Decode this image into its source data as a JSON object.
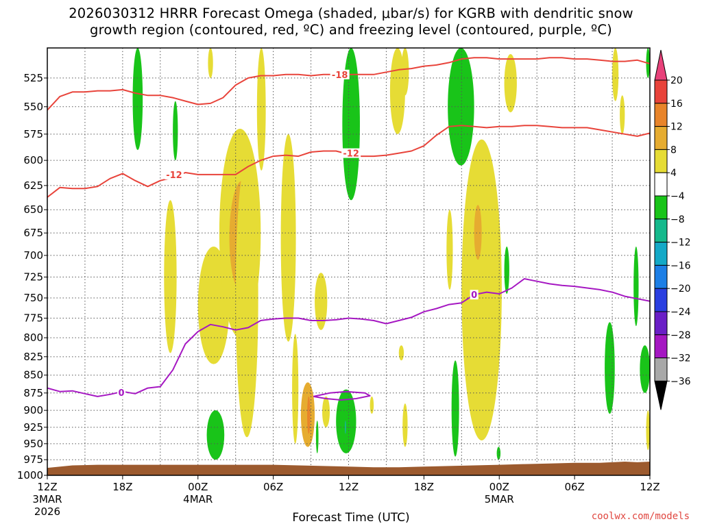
{
  "title": {
    "line1": "2026030312 HRRR Forecast Omega (shaded, μbar/s) for KGRB with dendritic snow",
    "line2": "growth region (contoured, red, ºC) and freezing level (contoured, purple, ºC)"
  },
  "credit": "coolwx.com/models",
  "chart_data": {
    "type": "heatmap",
    "xlabel": "Forecast Time (UTC)",
    "x_ticks": [
      {
        "hour": 0,
        "label": "12Z",
        "sub1": "3MAR",
        "sub2": "2026"
      },
      {
        "hour": 6,
        "label": "18Z",
        "sub1": "",
        "sub2": ""
      },
      {
        "hour": 12,
        "label": "00Z",
        "sub1": "4MAR",
        "sub2": ""
      },
      {
        "hour": 18,
        "label": "06Z",
        "sub1": "",
        "sub2": ""
      },
      {
        "hour": 24,
        "label": "12Z",
        "sub1": "",
        "sub2": ""
      },
      {
        "hour": 30,
        "label": "18Z",
        "sub1": "",
        "sub2": ""
      },
      {
        "hour": 36,
        "label": "00Z",
        "sub1": "5MAR",
        "sub2": ""
      },
      {
        "hour": 42,
        "label": "06Z",
        "sub1": "",
        "sub2": ""
      },
      {
        "hour": 48,
        "label": "12Z",
        "sub1": "",
        "sub2": ""
      }
    ],
    "xlim_hours": [
      0,
      48
    ],
    "y_ticks": [
      525,
      550,
      575,
      600,
      625,
      650,
      675,
      700,
      725,
      750,
      775,
      800,
      825,
      850,
      875,
      900,
      925,
      950,
      975,
      1000
    ],
    "ylim_hpa": [
      500,
      1000
    ],
    "y_scale": "log",
    "grid": true,
    "colorbar": {
      "labels": [
        "20",
        "16",
        "12",
        "8",
        "4",
        "−4",
        "−8",
        "−12",
        "−16",
        "−20",
        "−24",
        "−28",
        "−32",
        "−36"
      ],
      "colors": [
        "#e8417a",
        "#e8433a",
        "#e8842a",
        "#e6ac30",
        "#e6dc35",
        "#ffffff",
        "#19c419",
        "#15b98c",
        "#14a9c7",
        "#1d7fe6",
        "#2a3fe0",
        "#6a1fc6",
        "#a517c2",
        "#a8a8a8",
        "#000000"
      ],
      "placement": "right"
    },
    "omega_cells": [
      {
        "x": [
          6.8,
          7.6
        ],
        "y": [
          500,
          590
        ],
        "value": -6
      },
      {
        "x": [
          10.0,
          10.4
        ],
        "y": [
          545,
          600
        ],
        "value": -6
      },
      {
        "x": [
          12.8,
          13.2
        ],
        "y": [
          500,
          525
        ],
        "value": 6
      },
      {
        "x": [
          9.3,
          10.3
        ],
        "y": [
          640,
          820
        ],
        "value": 6
      },
      {
        "x": [
          12.0,
          14.5
        ],
        "y": [
          690,
          835
        ],
        "value": 6
      },
      {
        "x": [
          13.7,
          17.0
        ],
        "y": [
          570,
          800
        ],
        "value": 6
      },
      {
        "x": [
          14.5,
          16.6
        ],
        "y": [
          620,
          745
        ],
        "value": 9
      },
      {
        "x": [
          15.0,
          16.8
        ],
        "y": [
          600,
          940
        ],
        "value": 6
      },
      {
        "x": [
          12.7,
          14.1
        ],
        "y": [
          900,
          975
        ],
        "value": -6
      },
      {
        "x": [
          16.7,
          17.4
        ],
        "y": [
          500,
          610
        ],
        "value": 6
      },
      {
        "x": [
          18.6,
          19.8
        ],
        "y": [
          575,
          805
        ],
        "value": 6
      },
      {
        "x": [
          19.5,
          20.0
        ],
        "y": [
          795,
          950
        ],
        "value": 6
      },
      {
        "x": [
          20.2,
          21.3
        ],
        "y": [
          860,
          955
        ],
        "value": 9
      },
      {
        "x": [
          20.7,
          20.95
        ],
        "y": [
          880,
          935
        ],
        "value": 14
      },
      {
        "x": [
          21.3,
          22.3
        ],
        "y": [
          720,
          790
        ],
        "value": 6
      },
      {
        "x": [
          21.4,
          21.6
        ],
        "y": [
          915,
          965
        ],
        "value": -6
      },
      {
        "x": [
          21.9,
          22.5
        ],
        "y": [
          880,
          925
        ],
        "value": 6
      },
      {
        "x": [
          23.0,
          24.6
        ],
        "y": [
          870,
          965
        ],
        "value": -6
      },
      {
        "x": [
          23.7,
          23.8
        ],
        "y": [
          915,
          935
        ],
        "value": -10
      },
      {
        "x": [
          23.5,
          24.9
        ],
        "y": [
          500,
          640
        ],
        "value": -6
      },
      {
        "x": [
          25.7,
          26.0
        ],
        "y": [
          880,
          905
        ],
        "value": 6
      },
      {
        "x": [
          27.3,
          28.5
        ],
        "y": [
          500,
          575
        ],
        "value": 6
      },
      {
        "x": [
          28.2,
          28.8
        ],
        "y": [
          500,
          540
        ],
        "value": 6
      },
      {
        "x": [
          28.0,
          28.4
        ],
        "y": [
          810,
          830
        ],
        "value": 6
      },
      {
        "x": [
          28.3,
          28.7
        ],
        "y": [
          890,
          955
        ],
        "value": 6
      },
      {
        "x": [
          31.8,
          32.3
        ],
        "y": [
          650,
          740
        ],
        "value": 6
      },
      {
        "x": [
          32.2,
          32.8
        ],
        "y": [
          830,
          970
        ],
        "value": -6
      },
      {
        "x": [
          31.9,
          34.0
        ],
        "y": [
          500,
          605
        ],
        "value": -6
      },
      {
        "x": [
          33.0,
          36.2
        ],
        "y": [
          580,
          945
        ],
        "value": 6
      },
      {
        "x": [
          34.0,
          34.6
        ],
        "y": [
          645,
          705
        ],
        "value": 9
      },
      {
        "x": [
          35.8,
          36.1
        ],
        "y": [
          955,
          975
        ],
        "value": -6
      },
      {
        "x": [
          36.4,
          36.8
        ],
        "y": [
          690,
          745
        ],
        "value": -6
      },
      {
        "x": [
          36.4,
          37.4
        ],
        "y": [
          505,
          555
        ],
        "value": 6
      },
      {
        "x": [
          45.0,
          45.5
        ],
        "y": [
          500,
          545
        ],
        "value": 6
      },
      {
        "x": [
          45.6,
          46.0
        ],
        "y": [
          540,
          575
        ],
        "value": 6
      },
      {
        "x": [
          44.4,
          45.2
        ],
        "y": [
          780,
          905
        ],
        "value": -6
      },
      {
        "x": [
          46.7,
          47.1
        ],
        "y": [
          690,
          785
        ],
        "value": -6
      },
      {
        "x": [
          47.2,
          48.0
        ],
        "y": [
          810,
          875
        ],
        "value": -6
      },
      {
        "x": [
          47.7,
          48.0
        ],
        "y": [
          900,
          960
        ],
        "value": 6
      },
      {
        "x": [
          47.7,
          48.0
        ],
        "y": [
          500,
          525
        ],
        "value": -6
      }
    ],
    "series": [
      {
        "label": "-18",
        "color": "#e8433a",
        "x": [
          0,
          1,
          2,
          3,
          4,
          5,
          6,
          7,
          8,
          9,
          10,
          11,
          12,
          13,
          14,
          15,
          16,
          17,
          18,
          19,
          20,
          21,
          22,
          23,
          24,
          25,
          26,
          27,
          28,
          29,
          30,
          31,
          32,
          33,
          34,
          35,
          36,
          37,
          38,
          39,
          40,
          41,
          42,
          43,
          44,
          45,
          46,
          47,
          48
        ],
        "y": [
          553,
          541,
          537,
          537,
          536,
          536,
          535,
          538,
          540,
          540,
          542,
          545,
          548,
          547,
          542,
          531,
          525,
          523,
          523,
          522,
          522,
          523,
          522,
          522,
          522,
          522,
          522,
          520,
          518,
          517,
          515,
          514,
          512,
          509,
          508,
          508,
          509,
          509,
          509,
          509,
          508,
          508,
          509,
          509,
          510,
          511,
          511,
          510,
          513
        ]
      },
      {
        "label": "-12",
        "color": "#e8433a",
        "x": [
          0,
          1,
          2,
          3,
          4,
          5,
          6,
          7,
          8,
          9,
          10,
          11,
          12,
          13,
          14,
          15,
          16,
          17,
          18,
          19,
          20,
          21,
          22,
          23,
          24,
          25,
          26,
          27,
          28,
          29,
          30,
          31,
          32,
          33,
          34,
          35,
          36,
          37,
          38,
          39,
          40,
          41,
          42,
          43,
          44,
          45,
          46,
          47,
          48
        ],
        "y": [
          637,
          627,
          628,
          628,
          626,
          618,
          613,
          620,
          626,
          620,
          617,
          612,
          614,
          614,
          614,
          614,
          606,
          600,
          596,
          595,
          596,
          592,
          591,
          591,
          594,
          596,
          596,
          595,
          593,
          591,
          586,
          576,
          568,
          567,
          568,
          569,
          568,
          568,
          567,
          567,
          568,
          569,
          569,
          569,
          571,
          573,
          575,
          577,
          574
        ]
      },
      {
        "label": "0",
        "color": "#a517c2",
        "x": [
          0,
          1,
          2,
          3,
          4,
          5,
          6,
          7,
          8,
          9,
          10,
          11,
          12,
          13,
          14,
          15,
          16,
          17,
          18,
          19,
          20,
          21,
          22,
          23,
          24,
          25,
          26,
          27,
          28,
          29,
          30,
          31,
          32,
          33,
          34,
          35,
          36,
          37,
          38,
          39,
          40,
          41,
          42,
          43,
          44,
          45,
          46,
          47,
          48
        ],
        "y": [
          868,
          873,
          872,
          876,
          880,
          877,
          873,
          876,
          868,
          866,
          843,
          808,
          792,
          783,
          786,
          790,
          787,
          778,
          776,
          775,
          775,
          778,
          778,
          777,
          775,
          776,
          778,
          782,
          778,
          774,
          767,
          763,
          758,
          756,
          746,
          743,
          745,
          738,
          727,
          730,
          733,
          735,
          736,
          738,
          740,
          743,
          748,
          751,
          754
        ]
      },
      {
        "label": "",
        "color": "#a517c2",
        "x": [
          21.2,
          22.5,
          23.8,
          25.3,
          25.7,
          24.6,
          23.4,
          22.2,
          21.2
        ],
        "y": [
          880,
          875,
          873,
          875,
          879,
          883,
          885,
          883,
          880
        ]
      }
    ],
    "contour_labels": [
      {
        "text": "-18",
        "x": 23.3,
        "y": 522,
        "color": "#e8433a"
      },
      {
        "text": "-12",
        "x": 10.1,
        "y": 614,
        "color": "#e8433a"
      },
      {
        "text": "-12",
        "x": 24.2,
        "y": 593,
        "color": "#e8433a"
      },
      {
        "text": "0",
        "x": 5.9,
        "y": 874,
        "color": "#a517c2"
      },
      {
        "text": "0",
        "x": 34.0,
        "y": 746,
        "color": "#a517c2"
      }
    ],
    "ground": {
      "color": "#9c5a2e",
      "x": [
        0,
        2,
        4,
        6,
        8,
        10,
        12,
        14,
        16,
        18,
        20,
        22,
        24,
        26,
        28,
        30,
        32,
        34,
        36,
        38,
        40,
        42,
        44,
        46,
        47,
        48
      ],
      "y": [
        988,
        984,
        983,
        983,
        983,
        983,
        983,
        983,
        983,
        983,
        984,
        985,
        986,
        987,
        987,
        986,
        985,
        984,
        983,
        982,
        981,
        980,
        980,
        978,
        979,
        978
      ]
    }
  }
}
